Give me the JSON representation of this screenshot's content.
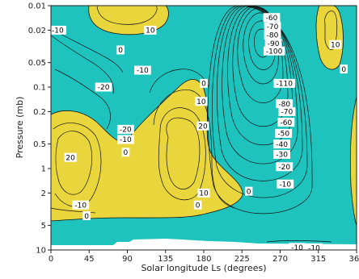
{
  "chart_data": {
    "type": "heatmap",
    "title": "",
    "xlabel": "Solar longitude Ls (degrees)",
    "ylabel": "Pressure (mb)",
    "xlim": [
      0,
      360
    ],
    "ylim": [
      10,
      0.01
    ],
    "y_scale": "log",
    "x_ticks": [
      "0",
      "45",
      "90",
      "135",
      "180",
      "225",
      "270",
      "315",
      "360"
    ],
    "y_ticks": [
      "0.01",
      "0.02",
      "0.05",
      "0.1",
      "0.2",
      "0.5",
      "1",
      "2",
      "5",
      "10"
    ],
    "fill_colors": {
      "positive": "#e9d63c",
      "negative": "#1fc3be",
      "missing": "#ffffff"
    },
    "contours": [
      {
        "level": "-10",
        "Ls": 8,
        "p": 0.02
      },
      {
        "level": "10",
        "Ls": 117,
        "p": 0.02
      },
      {
        "level": "0",
        "Ls": 82,
        "p": 0.035
      },
      {
        "level": "-10",
        "Ls": 108,
        "p": 0.062
      },
      {
        "level": "-20",
        "Ls": 62,
        "p": 0.1
      },
      {
        "level": "0",
        "Ls": 180,
        "p": 0.09
      },
      {
        "level": "10",
        "Ls": 177,
        "p": 0.15
      },
      {
        "level": "20",
        "Ls": 179,
        "p": 0.3
      },
      {
        "level": "-20",
        "Ls": 88,
        "p": 0.33
      },
      {
        "level": "-10",
        "Ls": 88,
        "p": 0.44
      },
      {
        "level": "0",
        "Ls": 88,
        "p": 0.63
      },
      {
        "level": "20",
        "Ls": 23,
        "p": 0.73
      },
      {
        "level": "10",
        "Ls": 180,
        "p": 2.0
      },
      {
        "level": "0",
        "Ls": 173,
        "p": 2.8
      },
      {
        "level": "0",
        "Ls": 233,
        "p": 1.9
      },
      {
        "level": "-10",
        "Ls": 35,
        "p": 2.8
      },
      {
        "level": "0",
        "Ls": 42,
        "p": 3.8
      },
      {
        "level": "-60",
        "Ls": 260,
        "p": 0.014
      },
      {
        "level": "-70",
        "Ls": 261,
        "p": 0.018
      },
      {
        "level": "-80",
        "Ls": 261,
        "p": 0.023
      },
      {
        "level": "-90",
        "Ls": 262,
        "p": 0.029
      },
      {
        "level": "-100",
        "Ls": 263,
        "p": 0.036
      },
      {
        "level": "-110",
        "Ls": 275,
        "p": 0.09
      },
      {
        "level": "-80",
        "Ls": 275,
        "p": 0.16
      },
      {
        "level": "-70",
        "Ls": 278,
        "p": 0.2
      },
      {
        "level": "-60",
        "Ls": 277,
        "p": 0.27
      },
      {
        "level": "-50",
        "Ls": 274,
        "p": 0.37
      },
      {
        "level": "-40",
        "Ls": 272,
        "p": 0.5
      },
      {
        "level": "-30",
        "Ls": 272,
        "p": 0.67
      },
      {
        "level": "-20",
        "Ls": 275,
        "p": 0.95
      },
      {
        "level": "-10",
        "Ls": 276,
        "p": 1.55
      },
      {
        "level": "10",
        "Ls": 335,
        "p": 0.03
      },
      {
        "level": "0",
        "Ls": 345,
        "p": 0.06
      },
      {
        "level": "-10",
        "Ls": 290,
        "p": 9.3
      },
      {
        "level": "-10",
        "Ls": 310,
        "p": 9.4
      }
    ]
  }
}
